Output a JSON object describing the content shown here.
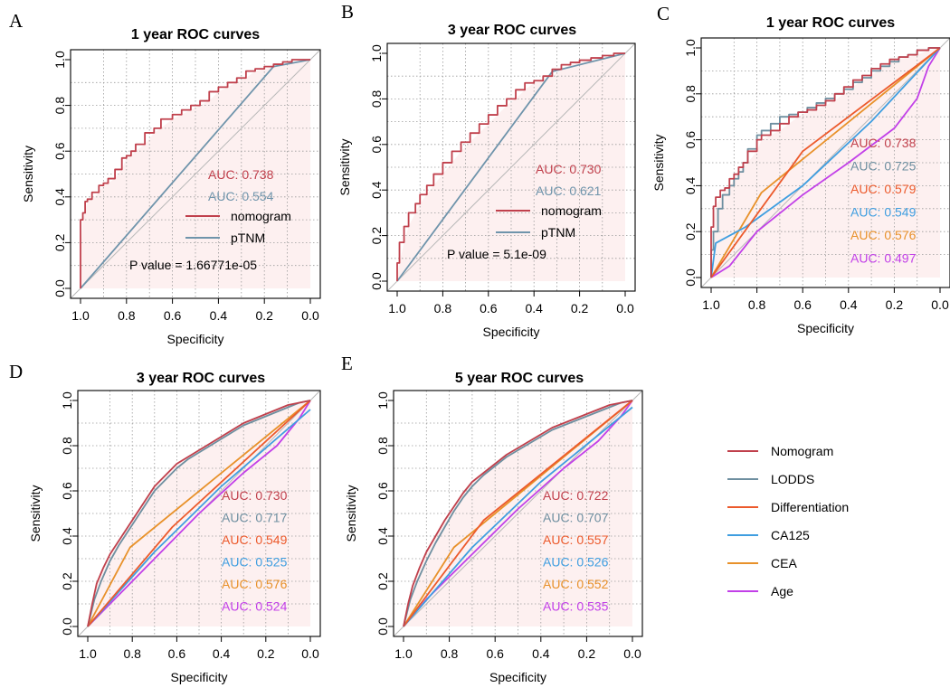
{
  "colors": {
    "nomogram": "#c0404c",
    "ptnm": "#6f94ab",
    "lodds": "#6e8fa0",
    "differentiation": "#ec5a2c",
    "ca125": "#3f9ee0",
    "cea": "#e8912a",
    "age": "#c240e8",
    "background": "#fdf0f0",
    "diagonal": "#b8b8b8"
  },
  "legend": {
    "items": [
      {
        "label": "Nomogram",
        "color": "#c0404c"
      },
      {
        "label": "LODDS",
        "color": "#6e8fa0"
      },
      {
        "label": "Differentiation",
        "color": "#ec5a2c"
      },
      {
        "label": "CA125",
        "color": "#3f9ee0"
      },
      {
        "label": "CEA",
        "color": "#e8912a"
      },
      {
        "label": "Age",
        "color": "#c240e8"
      }
    ]
  },
  "chart_data": [
    {
      "panel": "A",
      "type": "line",
      "title": "1 year ROC curves",
      "xlabel": "Specificity",
      "ylabel": "Sensitivity",
      "xlim": [
        1.0,
        0.0
      ],
      "ylim": [
        0.0,
        1.0
      ],
      "xticks": [
        "1.0",
        "0.8",
        "0.6",
        "0.4",
        "0.2",
        "0.0"
      ],
      "yticks": [
        "0.0",
        "0.2",
        "0.4",
        "0.6",
        "0.8",
        "1.0"
      ],
      "grid": true,
      "series": [
        {
          "name": "nomogram",
          "color": "#c0404c",
          "step": true,
          "auc": "AUC: 0.738",
          "x": [
            1.0,
            1.0,
            0.99,
            0.98,
            0.97,
            0.95,
            0.92,
            0.9,
            0.88,
            0.85,
            0.82,
            0.8,
            0.78,
            0.76,
            0.72,
            0.68,
            0.65,
            0.6,
            0.56,
            0.52,
            0.48,
            0.44,
            0.4,
            0.36,
            0.32,
            0.28,
            0.24,
            0.2,
            0.16,
            0.12,
            0.08,
            0.03,
            0.0
          ],
          "y": [
            0.0,
            0.15,
            0.3,
            0.33,
            0.38,
            0.39,
            0.42,
            0.45,
            0.46,
            0.48,
            0.52,
            0.57,
            0.58,
            0.6,
            0.63,
            0.68,
            0.7,
            0.74,
            0.76,
            0.78,
            0.8,
            0.82,
            0.86,
            0.88,
            0.9,
            0.92,
            0.95,
            0.96,
            0.97,
            0.98,
            0.99,
            1.0,
            1.0
          ]
        },
        {
          "name": "pTNM",
          "color": "#6f94ab",
          "step": false,
          "auc": "AUC: 0.554",
          "x": [
            1.0,
            0.16,
            0.0
          ],
          "y": [
            0.0,
            0.97,
            1.0
          ]
        }
      ],
      "legend": [
        {
          "label": "nomogram",
          "color": "#c0404c"
        },
        {
          "label": "pTNM",
          "color": "#6f94ab"
        }
      ],
      "annotation": "P value = 1.66771e-05"
    },
    {
      "panel": "B",
      "type": "line",
      "title": "3 year ROC curves",
      "xlabel": "Specificity",
      "ylabel": "Sensitivity",
      "xlim": [
        1.0,
        0.0
      ],
      "ylim": [
        0.0,
        1.0
      ],
      "xticks": [
        "1.0",
        "0.8",
        "0.6",
        "0.4",
        "0.2",
        "0.0"
      ],
      "yticks": [
        "0.0",
        "0.2",
        "0.4",
        "0.6",
        "0.8",
        "1.0"
      ],
      "grid": true,
      "series": [
        {
          "name": "nomogram",
          "color": "#c0404c",
          "step": true,
          "auc": "AUC: 0.730",
          "x": [
            1.0,
            0.99,
            0.97,
            0.95,
            0.92,
            0.9,
            0.87,
            0.84,
            0.8,
            0.76,
            0.72,
            0.68,
            0.64,
            0.6,
            0.56,
            0.52,
            0.48,
            0.44,
            0.4,
            0.36,
            0.32,
            0.28,
            0.24,
            0.2,
            0.15,
            0.1,
            0.05,
            0.0
          ],
          "y": [
            0.0,
            0.08,
            0.17,
            0.24,
            0.3,
            0.34,
            0.38,
            0.42,
            0.47,
            0.52,
            0.57,
            0.61,
            0.65,
            0.69,
            0.73,
            0.77,
            0.8,
            0.84,
            0.87,
            0.88,
            0.9,
            0.93,
            0.95,
            0.96,
            0.97,
            0.98,
            0.99,
            1.0
          ]
        },
        {
          "name": "pTNM",
          "color": "#6f94ab",
          "step": false,
          "auc": "AUC: 0.621",
          "x": [
            1.0,
            0.32,
            0.0
          ],
          "y": [
            0.0,
            0.92,
            1.0
          ]
        }
      ],
      "legend": [
        {
          "label": "nomogram",
          "color": "#c0404c"
        },
        {
          "label": "pTNM",
          "color": "#6f94ab"
        }
      ],
      "annotation": "P value = 5.1e-09"
    },
    {
      "panel": "C",
      "type": "line",
      "title": "1 year ROC curves",
      "xlabel": "Specificity",
      "ylabel": "Sensitivity",
      "xlim": [
        1.0,
        0.0
      ],
      "ylim": [
        0.0,
        1.0
      ],
      "xticks": [
        "1.0",
        "0.8",
        "0.6",
        "0.4",
        "0.2",
        "0.0"
      ],
      "yticks": [
        "0.0",
        "0.2",
        "0.4",
        "0.6",
        "0.8",
        "1.0"
      ],
      "grid": true,
      "series": [
        {
          "name": "Nomogram",
          "color": "#c0404c",
          "step": true,
          "auc": "AUC: 0.738",
          "x": [
            1.0,
            0.99,
            0.98,
            0.96,
            0.94,
            0.92,
            0.9,
            0.88,
            0.86,
            0.84,
            0.8,
            0.78,
            0.74,
            0.7,
            0.66,
            0.62,
            0.58,
            0.54,
            0.5,
            0.46,
            0.42,
            0.38,
            0.34,
            0.3,
            0.26,
            0.22,
            0.18,
            0.14,
            0.1,
            0.05,
            0.0
          ],
          "y": [
            0.0,
            0.22,
            0.31,
            0.35,
            0.38,
            0.39,
            0.43,
            0.45,
            0.48,
            0.5,
            0.55,
            0.6,
            0.62,
            0.64,
            0.67,
            0.7,
            0.72,
            0.73,
            0.75,
            0.77,
            0.8,
            0.83,
            0.86,
            0.88,
            0.91,
            0.93,
            0.95,
            0.96,
            0.97,
            0.99,
            1.0
          ]
        },
        {
          "name": "LODDS",
          "color": "#6e8fa0",
          "step": true,
          "auc": "AUC: 0.725",
          "x": [
            1.0,
            0.99,
            0.97,
            0.95,
            0.92,
            0.9,
            0.88,
            0.86,
            0.84,
            0.8,
            0.78,
            0.74,
            0.7,
            0.66,
            0.62,
            0.58,
            0.54,
            0.5,
            0.46,
            0.42,
            0.38,
            0.34,
            0.3,
            0.26,
            0.22,
            0.18,
            0.14,
            0.1,
            0.05,
            0.0
          ],
          "y": [
            0.0,
            0.12,
            0.2,
            0.3,
            0.36,
            0.4,
            0.43,
            0.46,
            0.5,
            0.56,
            0.62,
            0.64,
            0.67,
            0.7,
            0.71,
            0.72,
            0.74,
            0.76,
            0.78,
            0.8,
            0.82,
            0.85,
            0.87,
            0.9,
            0.92,
            0.94,
            0.96,
            0.97,
            0.99,
            1.0
          ]
        },
        {
          "name": "Differentiation",
          "color": "#ec5a2c",
          "step": false,
          "auc": "AUC: 0.579",
          "x": [
            1.0,
            0.6,
            0.0
          ],
          "y": [
            0.0,
            0.55,
            1.0
          ]
        },
        {
          "name": "CA125",
          "color": "#3f9ee0",
          "step": false,
          "auc": "AUC: 0.549",
          "x": [
            1.0,
            0.98,
            0.85,
            0.6,
            0.3,
            0.0
          ],
          "y": [
            0.0,
            0.15,
            0.22,
            0.4,
            0.68,
            1.0
          ]
        },
        {
          "name": "CEA",
          "color": "#e8912a",
          "step": false,
          "auc": "AUC: 0.576",
          "x": [
            1.0,
            0.78,
            0.0
          ],
          "y": [
            0.0,
            0.37,
            1.0
          ]
        },
        {
          "name": "Age",
          "color": "#c240e8",
          "step": false,
          "auc": "AUC: 0.497",
          "x": [
            1.0,
            0.92,
            0.8,
            0.6,
            0.4,
            0.2,
            0.1,
            0.05,
            0.0
          ],
          "y": [
            0.0,
            0.05,
            0.2,
            0.36,
            0.5,
            0.65,
            0.78,
            0.92,
            1.0
          ]
        }
      ]
    },
    {
      "panel": "D",
      "type": "line",
      "title": "3 year ROC curves",
      "xlabel": "Specificity",
      "ylabel": "Sensitivity",
      "xlim": [
        1.0,
        0.0
      ],
      "ylim": [
        0.0,
        1.0
      ],
      "xticks": [
        "1.0",
        "0.8",
        "0.6",
        "0.4",
        "0.2",
        "0.0"
      ],
      "yticks": [
        "0.0",
        "0.2",
        "0.4",
        "0.6",
        "0.8",
        "1.0"
      ],
      "grid": true,
      "series": [
        {
          "name": "Nomogram",
          "color": "#c0404c",
          "step": false,
          "auc": "AUC: 0.730",
          "x": [
            1.0,
            0.98,
            0.96,
            0.93,
            0.9,
            0.86,
            0.82,
            0.78,
            0.74,
            0.7,
            0.65,
            0.6,
            0.55,
            0.5,
            0.45,
            0.4,
            0.35,
            0.3,
            0.25,
            0.2,
            0.15,
            0.1,
            0.05,
            0.0
          ],
          "y": [
            0.0,
            0.1,
            0.19,
            0.26,
            0.32,
            0.38,
            0.44,
            0.5,
            0.56,
            0.62,
            0.67,
            0.72,
            0.75,
            0.78,
            0.81,
            0.84,
            0.87,
            0.9,
            0.92,
            0.94,
            0.96,
            0.98,
            0.99,
            1.0
          ]
        },
        {
          "name": "LODDS",
          "color": "#6e8fa0",
          "step": false,
          "auc": "AUC: 0.717",
          "x": [
            1.0,
            0.97,
            0.94,
            0.9,
            0.86,
            0.82,
            0.78,
            0.74,
            0.7,
            0.65,
            0.6,
            0.55,
            0.5,
            0.45,
            0.4,
            0.35,
            0.3,
            0.25,
            0.2,
            0.15,
            0.1,
            0.05,
            0.0
          ],
          "y": [
            0.0,
            0.12,
            0.2,
            0.29,
            0.36,
            0.42,
            0.48,
            0.54,
            0.6,
            0.65,
            0.7,
            0.74,
            0.77,
            0.8,
            0.83,
            0.86,
            0.89,
            0.91,
            0.93,
            0.95,
            0.97,
            0.99,
            1.0
          ]
        },
        {
          "name": "Differentiation",
          "color": "#ec5a2c",
          "step": false,
          "auc": "AUC: 0.549",
          "x": [
            1.0,
            0.62,
            0.0
          ],
          "y": [
            0.0,
            0.44,
            1.0
          ]
        },
        {
          "name": "CA125",
          "color": "#3f9ee0",
          "step": false,
          "auc": "AUC: 0.525",
          "x": [
            1.0,
            0.7,
            0.4,
            0.0
          ],
          "y": [
            0.0,
            0.33,
            0.62,
            0.96
          ]
        },
        {
          "name": "CEA",
          "color": "#e8912a",
          "step": false,
          "auc": "AUC: 0.576",
          "x": [
            1.0,
            0.81,
            0.0
          ],
          "y": [
            0.0,
            0.35,
            1.0
          ]
        },
        {
          "name": "Age",
          "color": "#c240e8",
          "step": false,
          "auc": "AUC: 0.524",
          "x": [
            1.0,
            0.9,
            0.7,
            0.5,
            0.3,
            0.15,
            0.05,
            0.0
          ],
          "y": [
            0.0,
            0.1,
            0.3,
            0.5,
            0.68,
            0.8,
            0.92,
            1.0
          ]
        }
      ]
    },
    {
      "panel": "E",
      "type": "line",
      "title": "5 year ROC curves",
      "xlabel": "Specificity",
      "ylabel": "Sensitivity",
      "xlim": [
        1.0,
        0.0
      ],
      "ylim": [
        0.0,
        1.0
      ],
      "xticks": [
        "1.0",
        "0.8",
        "0.6",
        "0.4",
        "0.2",
        "0.0"
      ],
      "yticks": [
        "0.0",
        "0.2",
        "0.4",
        "0.6",
        "0.8",
        "1.0"
      ],
      "grid": true,
      "series": [
        {
          "name": "Nomogram",
          "color": "#c0404c",
          "step": false,
          "auc": "AUC: 0.722",
          "x": [
            1.0,
            0.98,
            0.96,
            0.93,
            0.9,
            0.86,
            0.82,
            0.78,
            0.74,
            0.7,
            0.65,
            0.6,
            0.55,
            0.5,
            0.45,
            0.4,
            0.35,
            0.3,
            0.25,
            0.2,
            0.15,
            0.1,
            0.05,
            0.0
          ],
          "y": [
            0.0,
            0.1,
            0.18,
            0.26,
            0.33,
            0.4,
            0.47,
            0.53,
            0.59,
            0.64,
            0.68,
            0.72,
            0.76,
            0.79,
            0.82,
            0.85,
            0.88,
            0.9,
            0.92,
            0.94,
            0.96,
            0.98,
            0.99,
            1.0
          ]
        },
        {
          "name": "LODDS",
          "color": "#6e8fa0",
          "step": false,
          "auc": "AUC: 0.707",
          "x": [
            1.0,
            0.97,
            0.94,
            0.9,
            0.86,
            0.82,
            0.78,
            0.74,
            0.7,
            0.65,
            0.6,
            0.55,
            0.5,
            0.45,
            0.4,
            0.35,
            0.3,
            0.25,
            0.2,
            0.15,
            0.1,
            0.05,
            0.0
          ],
          "y": [
            0.0,
            0.12,
            0.2,
            0.29,
            0.37,
            0.44,
            0.51,
            0.57,
            0.62,
            0.67,
            0.71,
            0.75,
            0.78,
            0.81,
            0.84,
            0.87,
            0.89,
            0.91,
            0.93,
            0.95,
            0.97,
            0.99,
            1.0
          ]
        },
        {
          "name": "Differentiation",
          "color": "#ec5a2c",
          "step": false,
          "auc": "AUC: 0.557",
          "x": [
            1.0,
            0.65,
            0.0
          ],
          "y": [
            0.0,
            0.47,
            1.0
          ]
        },
        {
          "name": "CA125",
          "color": "#3f9ee0",
          "step": false,
          "auc": "AUC: 0.526",
          "x": [
            1.0,
            0.7,
            0.4,
            0.0
          ],
          "y": [
            0.0,
            0.35,
            0.64,
            0.97
          ]
        },
        {
          "name": "CEA",
          "color": "#e8912a",
          "step": false,
          "auc": "AUC: 0.552",
          "x": [
            1.0,
            0.78,
            0.0
          ],
          "y": [
            0.0,
            0.35,
            1.0
          ]
        },
        {
          "name": "Age",
          "color": "#c240e8",
          "step": false,
          "auc": "AUC: 0.535",
          "x": [
            1.0,
            0.9,
            0.7,
            0.5,
            0.3,
            0.15,
            0.05,
            0.0
          ],
          "y": [
            0.0,
            0.12,
            0.32,
            0.52,
            0.7,
            0.82,
            0.93,
            1.0
          ]
        }
      ]
    }
  ]
}
